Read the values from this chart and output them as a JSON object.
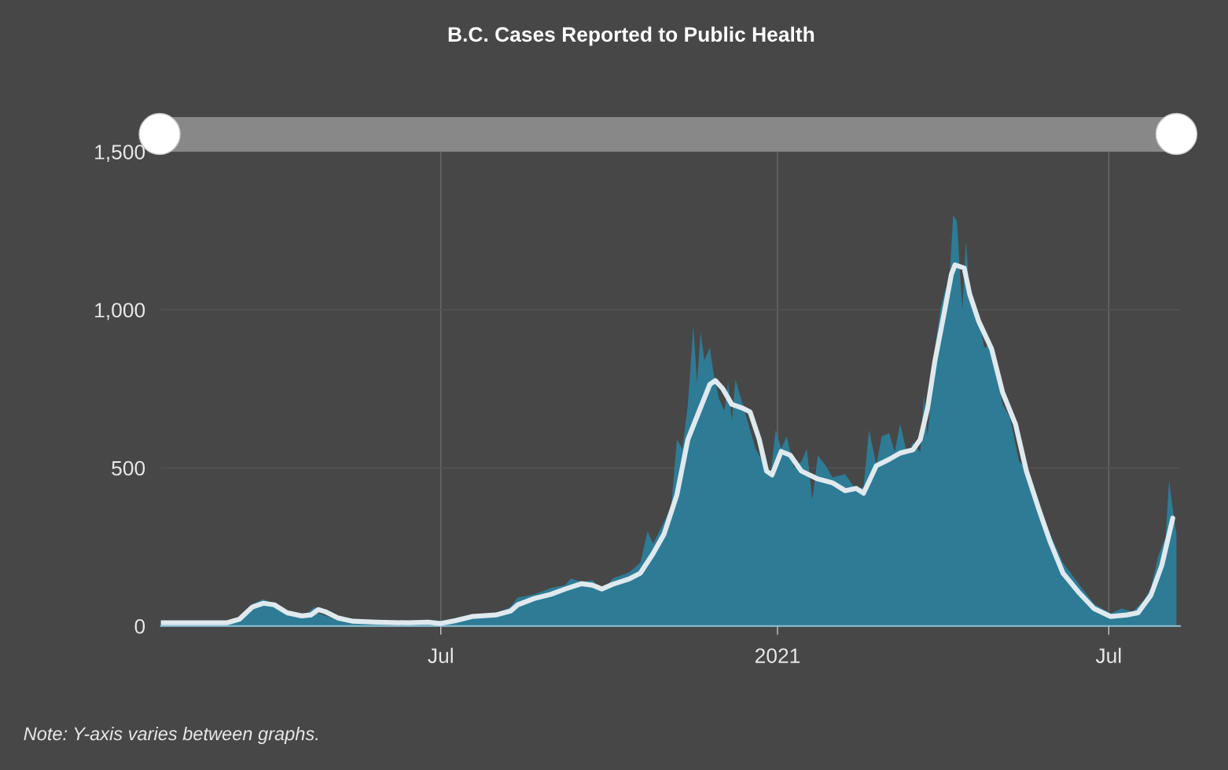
{
  "chart_data": {
    "type": "area",
    "title": "B.C. Cases Reported to Public Health",
    "annotations": [
      "Note: Y-axis varies between graphs."
    ],
    "xlim": [
      "2020-01-30",
      "2021-08-09"
    ],
    "xticks": [
      {
        "value": "2020-07-01",
        "label": "Jul"
      },
      {
        "value": "2021-01-01",
        "label": "2021"
      },
      {
        "value": "2021-07-01",
        "label": "Jul"
      }
    ],
    "ylim": [
      0,
      1500
    ],
    "yticks": [
      0,
      500,
      {
        "value": 1000,
        "label": "1,000"
      },
      {
        "value": 1500,
        "label": "1,500"
      }
    ],
    "grid": true,
    "legend": false,
    "series": [
      {
        "color": "#2e7b95",
        "x": [
          "2020-01-30",
          "2020-03-06",
          "2020-03-13",
          "2020-03-20",
          "2020-03-26",
          "2020-04-01",
          "2020-04-08",
          "2020-04-16",
          "2020-04-21",
          "2020-04-23",
          "2020-04-25",
          "2020-05-06",
          "2020-05-14",
          "2020-05-27",
          "2020-06-13",
          "2020-06-24",
          "2020-07-09",
          "2020-07-18",
          "2020-07-31",
          "2020-08-08",
          "2020-08-12",
          "2020-08-21",
          "2020-08-30",
          "2020-09-07",
          "2020-09-10",
          "2020-09-16",
          "2020-09-22",
          "2020-09-27",
          "2020-10-03",
          "2020-10-12",
          "2020-10-18",
          "2020-10-22",
          "2020-10-25",
          "2020-10-31",
          "2020-11-04",
          "2020-11-07",
          "2020-11-10",
          "2020-11-13",
          "2020-11-16",
          "2020-11-18",
          "2020-11-20",
          "2020-11-22",
          "2020-11-25",
          "2020-11-27",
          "2020-11-30",
          "2020-12-03",
          "2020-12-05",
          "2020-12-07",
          "2020-12-09",
          "2020-12-13",
          "2020-12-17",
          "2020-12-20",
          "2020-12-24",
          "2020-12-28",
          "2020-12-31",
          "2021-01-03",
          "2021-01-06",
          "2021-01-10",
          "2021-01-14",
          "2021-01-17",
          "2021-01-20",
          "2021-01-23",
          "2021-01-27",
          "2021-01-31",
          "2021-02-07",
          "2021-02-13",
          "2021-02-17",
          "2021-02-20",
          "2021-02-24",
          "2021-02-27",
          "2021-03-03",
          "2021-03-06",
          "2021-03-09",
          "2021-03-13",
          "2021-03-16",
          "2021-03-20",
          "2021-03-22",
          "2021-03-24",
          "2021-03-28",
          "2021-03-31",
          "2021-04-02",
          "2021-04-05",
          "2021-04-07",
          "2021-04-09",
          "2021-04-12",
          "2021-04-14",
          "2021-04-16",
          "2021-04-20",
          "2021-04-24",
          "2021-04-28",
          "2021-05-04",
          "2021-05-08",
          "2021-05-13",
          "2021-05-17",
          "2021-05-24",
          "2021-05-30",
          "2021-06-06",
          "2021-06-15",
          "2021-06-23",
          "2021-07-02",
          "2021-07-08",
          "2021-07-14",
          "2021-07-20",
          "2021-07-24",
          "2021-07-28",
          "2021-08-01",
          "2021-08-03",
          "2021-08-05",
          "2021-08-07"
        ],
        "values": [
          5,
          5,
          30,
          70,
          85,
          70,
          40,
          30,
          50,
          60,
          40,
          20,
          15,
          10,
          12,
          15,
          20,
          30,
          40,
          60,
          90,
          100,
          120,
          130,
          150,
          140,
          145,
          110,
          150,
          170,
          200,
          300,
          260,
          330,
          380,
          590,
          560,
          700,
          950,
          770,
          930,
          840,
          880,
          800,
          720,
          680,
          770,
          650,
          780,
          700,
          620,
          560,
          520,
          470,
          620,
          560,
          600,
          500,
          520,
          560,
          400,
          540,
          510,
          470,
          480,
          430,
          440,
          620,
          510,
          600,
          610,
          550,
          640,
          540,
          580,
          550,
          730,
          600,
          880,
          1000,
          1050,
          1100,
          1300,
          1280,
          1000,
          1220,
          1050,
          1000,
          880,
          890,
          700,
          660,
          520,
          500,
          380,
          290,
          200,
          130,
          70,
          40,
          55,
          45,
          80,
          120,
          220,
          280,
          460,
          370,
          290
        ]
      },
      {
        "type": "line",
        "color": "#dfe9ee",
        "x": [
          "2020-01-30",
          "2020-03-06",
          "2020-03-13",
          "2020-03-20",
          "2020-03-26",
          "2020-04-01",
          "2020-04-08",
          "2020-04-16",
          "2020-04-21",
          "2020-04-25",
          "2020-04-29",
          "2020-05-06",
          "2020-05-14",
          "2020-05-27",
          "2020-06-13",
          "2020-06-24",
          "2020-07-01",
          "2020-07-09",
          "2020-07-18",
          "2020-07-31",
          "2020-08-08",
          "2020-08-12",
          "2020-08-21",
          "2020-08-30",
          "2020-09-07",
          "2020-09-16",
          "2020-09-22",
          "2020-09-27",
          "2020-10-03",
          "2020-10-12",
          "2020-10-18",
          "2020-10-25",
          "2020-10-31",
          "2020-11-07",
          "2020-11-13",
          "2020-11-19",
          "2020-11-25",
          "2020-11-28",
          "2020-12-02",
          "2020-12-07",
          "2020-12-13",
          "2020-12-17",
          "2020-12-22",
          "2020-12-26",
          "2020-12-29",
          "2021-01-03",
          "2021-01-08",
          "2021-01-14",
          "2021-01-23",
          "2021-01-31",
          "2021-02-07",
          "2021-02-13",
          "2021-02-17",
          "2021-02-24",
          "2021-03-03",
          "2021-03-09",
          "2021-03-16",
          "2021-03-20",
          "2021-03-24",
          "2021-03-28",
          "2021-04-02",
          "2021-04-06",
          "2021-04-08",
          "2021-04-13",
          "2021-04-16",
          "2021-04-21",
          "2021-04-28",
          "2021-05-04",
          "2021-05-11",
          "2021-05-17",
          "2021-05-24",
          "2021-05-30",
          "2021-06-06",
          "2021-06-15",
          "2021-06-23",
          "2021-07-02",
          "2021-07-11",
          "2021-07-17",
          "2021-07-24",
          "2021-07-30",
          "2021-08-05"
        ],
        "values": [
          10,
          10,
          22,
          60,
          72,
          67,
          42,
          32,
          35,
          52,
          45,
          25,
          15,
          12,
          10,
          12,
          8,
          17,
          30,
          35,
          47,
          67,
          87,
          100,
          117,
          134,
          129,
          117,
          132,
          149,
          167,
          229,
          291,
          415,
          590,
          677,
          764,
          776,
          751,
          701,
          689,
          677,
          590,
          490,
          478,
          552,
          540,
          490,
          465,
          453,
          428,
          435,
          420,
          507,
          527,
          547,
          557,
          590,
          689,
          838,
          988,
          1112,
          1142,
          1132,
          1050,
          963,
          876,
          739,
          639,
          490,
          366,
          266,
          167,
          104,
          55,
          30,
          35,
          42,
          97,
          192,
          341
        ]
      }
    ]
  }
}
